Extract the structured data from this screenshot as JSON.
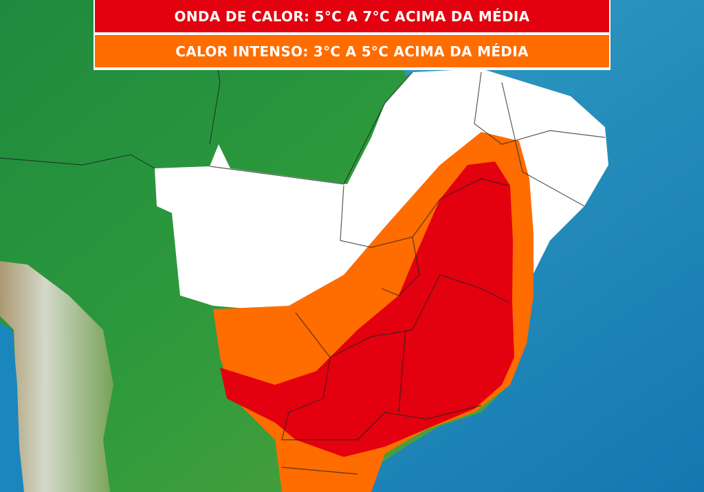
{
  "legend": {
    "items": [
      {
        "label": "ONDA DE CALOR: 5°C A 7°C ACIMA DA MÉDIA",
        "color": "#e3000f"
      },
      {
        "label": "CALOR INTENSO: 3°C A 5°C ACIMA DA MÉDIA",
        "color": "#ff6c00"
      }
    ]
  }
}
